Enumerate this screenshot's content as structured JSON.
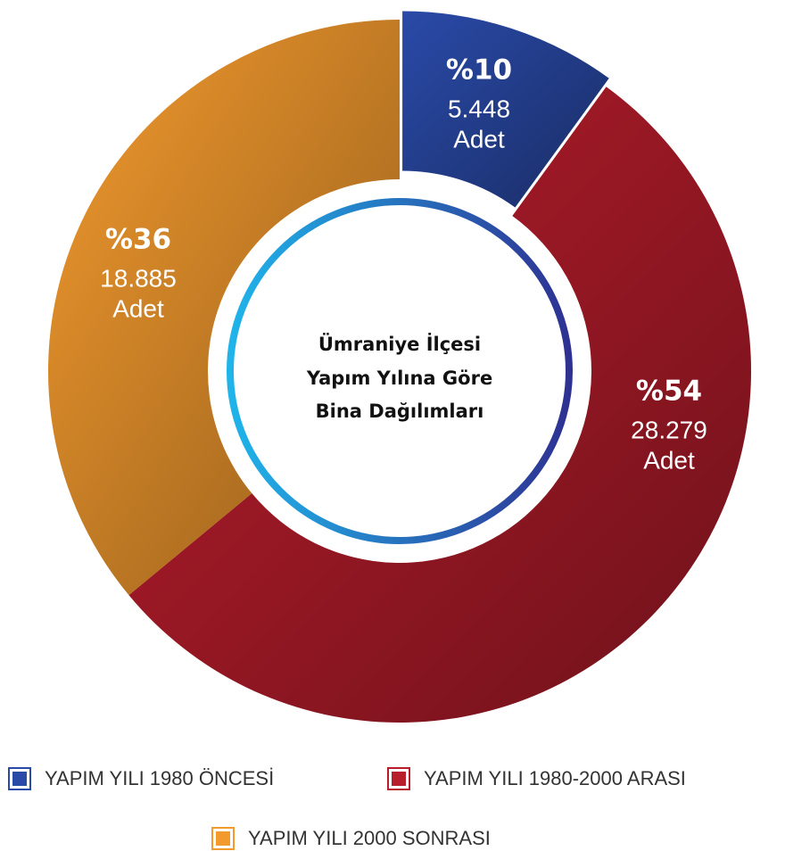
{
  "chart_data": {
    "type": "pie",
    "donut": true,
    "title": [
      "Ümraniye İlçesi",
      "Yapım Yılına Göre",
      "Bina Dağılımları"
    ],
    "categories": [
      "YAPIM YILI 1980 ÖNCESİ",
      "YAPIM YILI 1980-2000 ARASI",
      "YAPIM YILI 2000 SONRASI"
    ],
    "values": [
      10,
      54,
      36
    ],
    "value_labels": [
      "%10",
      "%54",
      "%36"
    ],
    "counts": [
      5448,
      28279,
      18885
    ],
    "count_labels": [
      "5.448",
      "28.279",
      "18.885"
    ],
    "unit": "Adet",
    "colors": [
      "#2a4aa8",
      "#b81d2c",
      "#f39a2e"
    ]
  }
}
